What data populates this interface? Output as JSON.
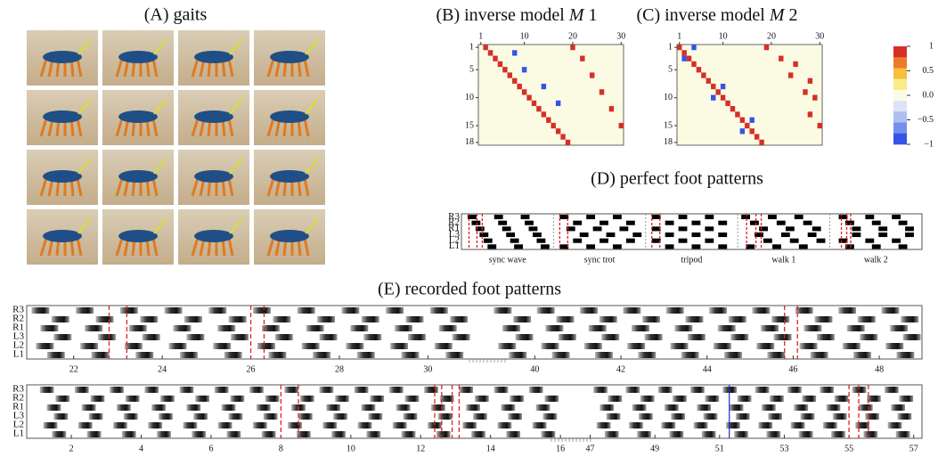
{
  "panel_a": {
    "title": "(A) gaits"
  },
  "colorbar": {
    "clim": [
      -1,
      1
    ],
    "colors": [
      "#d62f27",
      "#ec7a2c",
      "#f6c03c",
      "#f7ec86",
      "#fbfbe4",
      "#dce3f6",
      "#aebff1",
      "#7290ee",
      "#3454e6"
    ],
    "ticks": [
      1,
      0.5,
      {
        "value": 0,
        "label": "0.0"
      },
      {
        "value": -0.5,
        "label": "−0.5"
      },
      {
        "value": -1,
        "label": "−1"
      }
    ]
  },
  "panel_b": {
    "title": [
      "(B) inverse model ",
      "M",
      " 1"
    ],
    "xlim": [
      0.5,
      30.5
    ],
    "ylim": [
      0.5,
      18.5
    ],
    "xticks": [
      1,
      10,
      20,
      30
    ],
    "yticks": [
      1,
      5,
      10,
      15,
      18
    ],
    "cells": [
      [
        1,
        2,
        1
      ],
      [
        2,
        3,
        1
      ],
      [
        3,
        4,
        1
      ],
      [
        4,
        5,
        1
      ],
      [
        5,
        6,
        1
      ],
      [
        6,
        7,
        1
      ],
      [
        7,
        8,
        1
      ],
      [
        8,
        9,
        1
      ],
      [
        9,
        10,
        1
      ],
      [
        10,
        11,
        1
      ],
      [
        11,
        12,
        1
      ],
      [
        12,
        13,
        1
      ],
      [
        13,
        14,
        1
      ],
      [
        14,
        15,
        1
      ],
      [
        15,
        16,
        1
      ],
      [
        16,
        17,
        1
      ],
      [
        17,
        18,
        1
      ],
      [
        18,
        19,
        1
      ],
      [
        2,
        8,
        -1
      ],
      [
        5,
        10,
        -1
      ],
      [
        8,
        14,
        -1
      ],
      [
        11,
        17,
        -1
      ],
      [
        1,
        20,
        1
      ],
      [
        3,
        22,
        1
      ],
      [
        6,
        24,
        1
      ],
      [
        9,
        26,
        1
      ],
      [
        12,
        28,
        1
      ],
      [
        15,
        30,
        1
      ]
    ]
  },
  "panel_c": {
    "title": [
      "(C) inverse model ",
      "M",
      " 2"
    ],
    "xlim": [
      0.5,
      30.5
    ],
    "ylim": [
      0.5,
      18.5
    ],
    "xticks": [
      1,
      10,
      20,
      30
    ],
    "yticks": [
      1,
      5,
      10,
      15,
      18
    ],
    "cells": [
      [
        1,
        1,
        1
      ],
      [
        2,
        2,
        1
      ],
      [
        3,
        3,
        1
      ],
      [
        4,
        4,
        1
      ],
      [
        5,
        5,
        1
      ],
      [
        6,
        6,
        1
      ],
      [
        7,
        7,
        1
      ],
      [
        8,
        8,
        1
      ],
      [
        9,
        9,
        1
      ],
      [
        10,
        10,
        1
      ],
      [
        11,
        11,
        1
      ],
      [
        12,
        12,
        1
      ],
      [
        13,
        13,
        1
      ],
      [
        14,
        14,
        1
      ],
      [
        15,
        15,
        1
      ],
      [
        16,
        16,
        1
      ],
      [
        17,
        17,
        1
      ],
      [
        18,
        18,
        1
      ],
      [
        1,
        4,
        -1
      ],
      [
        3,
        2,
        -1
      ],
      [
        8,
        10,
        -1
      ],
      [
        10,
        8,
        -1
      ],
      [
        14,
        16,
        -1
      ],
      [
        16,
        14,
        -1
      ],
      [
        1,
        19,
        1
      ],
      [
        3,
        22,
        1
      ],
      [
        4,
        25,
        1
      ],
      [
        6,
        24,
        1
      ],
      [
        7,
        28,
        1
      ],
      [
        9,
        27,
        1
      ],
      [
        10,
        29,
        1
      ],
      [
        13,
        28,
        1
      ],
      [
        15,
        30,
        1
      ]
    ]
  },
  "panel_d": {
    "title": "(D) perfect foot patterns",
    "legs": [
      "R3",
      "R2",
      "R1",
      "L3",
      "L2",
      "L1"
    ],
    "xlim": [
      0,
      3.2
    ],
    "gaits": [
      {
        "name": "sync wave",
        "markers": [
          0.15,
          0.45,
          0.65
        ],
        "onsets": [
          [
            0.1,
            1.1,
            2.1
          ],
          [
            0.25,
            1.25,
            2.25
          ],
          [
            0.4,
            1.4,
            2.4
          ],
          [
            0.55,
            1.55,
            2.55
          ],
          [
            0.7,
            1.7,
            2.7
          ],
          [
            0.85,
            1.85,
            2.85
          ]
        ]
      },
      {
        "name": "sync trot",
        "markers": [
          0.1,
          0.4
        ],
        "onsets": [
          [
            0.1,
            1.1,
            2.1
          ],
          [
            0.6,
            1.6,
            2.6
          ],
          [
            0.35,
            1.35,
            2.35
          ],
          [
            0.85,
            1.85,
            2.85
          ],
          [
            0.6,
            1.6,
            2.6
          ],
          [
            0.1,
            1.1,
            2.1
          ]
        ]
      },
      {
        "name": "tripod",
        "markers": [
          0.1,
          0.4
        ],
        "onsets": [
          [
            0.1,
            1.1,
            2.1
          ],
          [
            0.6,
            1.6,
            2.6
          ],
          [
            0.1,
            1.1,
            2.1
          ],
          [
            0.6,
            1.6,
            2.6
          ],
          [
            0.1,
            1.1,
            2.1
          ],
          [
            0.6,
            1.6,
            2.6
          ]
        ]
      },
      {
        "name": "walk 1",
        "markers": [
          0.2,
          0.55,
          0.75
        ],
        "onsets": [
          [
            0,
            1,
            2
          ],
          [
            0.33,
            1.33,
            2.33
          ],
          [
            0.67,
            1.67,
            2.67
          ],
          [
            0.5,
            1.5,
            2.5
          ],
          [
            0.83,
            1.83,
            2.83
          ],
          [
            0.17,
            1.17,
            2.17
          ]
        ]
      },
      {
        "name": "walk 2",
        "markers": [
          0.3,
          0.5,
          0.65
        ],
        "onsets": [
          [
            0.2,
            1.2,
            2.2
          ],
          [
            0.45,
            1.45,
            2.45
          ],
          [
            0.7,
            1.7,
            2.7
          ],
          [
            0.7,
            1.7,
            2.7
          ],
          [
            0.2,
            1.2,
            2.2
          ],
          [
            0.45,
            1.45,
            2.45
          ]
        ]
      }
    ]
  },
  "recorded": {
    "title": "(E) recorded foot patterns",
    "legs": [
      "R3",
      "R2",
      "R1",
      "L3",
      "L2",
      "L1"
    ],
    "strips": [
      {
        "segments": [
          {
            "xlim": [
              21,
              31.3
            ],
            "xticks": [
              22,
              24,
              26,
              28,
              30
            ]
          },
          {
            "xlim": [
              39,
              48.95
            ],
            "xticks": [
              40,
              42,
              44,
              46,
              48
            ]
          }
        ],
        "markers": [
          22.8,
          23.2,
          26.0,
          26.3,
          45.8,
          46.1
        ],
        "onsets": [
          [
            21.05,
            22.05,
            23.05,
            24.05,
            25.05,
            26.05,
            27.05,
            28.05,
            29.05,
            30.05,
            39.05,
            40.05,
            41.05,
            42.05,
            43.05,
            44.05,
            45.05,
            46.05,
            47.05,
            48.05
          ],
          [
            21.5,
            22.5,
            23.5,
            24.5,
            25.5,
            26.5,
            27.5,
            28.5,
            29.5,
            30.5,
            39.5,
            40.5,
            41.5,
            42.5,
            43.5,
            44.5,
            45.5,
            46.5,
            47.5,
            48.5
          ],
          [
            21.25,
            22.25,
            23.25,
            24.25,
            25.25,
            26.25,
            27.25,
            28.25,
            29.25,
            30.25,
            39.25,
            40.25,
            41.25,
            42.25,
            43.25,
            44.25,
            45.25,
            46.25,
            47.25,
            48.25
          ],
          [
            21.55,
            22.55,
            23.55,
            24.55,
            25.55,
            26.55,
            27.55,
            28.55,
            29.55,
            30.55,
            39.55,
            40.55,
            41.55,
            42.55,
            43.55,
            44.55,
            45.55,
            46.55,
            47.55,
            48.55
          ],
          [
            21.15,
            22.15,
            23.15,
            24.15,
            25.15,
            26.15,
            27.15,
            28.15,
            29.15,
            30.15,
            39.15,
            40.15,
            41.15,
            42.15,
            43.15,
            44.15,
            45.15,
            46.15,
            47.15,
            48.15
          ],
          [
            21.4,
            22.4,
            23.4,
            24.4,
            25.4,
            26.4,
            27.4,
            28.4,
            29.4,
            30.4,
            39.4,
            40.4,
            41.4,
            42.4,
            43.4,
            44.4,
            45.4,
            46.4,
            47.4,
            48.4
          ]
        ]
      },
      {
        "segments": [
          {
            "xlim": [
              0.8,
              16.2
            ],
            "xticks": [
              2,
              4,
              6,
              8,
              10,
              12,
              14,
              16
            ]
          },
          {
            "xlim": [
              46.6,
              57.2
            ],
            "xticks": [
              47,
              49,
              51,
              53,
              55,
              57
            ]
          }
        ],
        "markers": [
          8.0,
          8.5,
          12.4,
          12.6,
          12.9,
          13.1,
          55.0,
          55.3,
          55.6
        ],
        "cursor": 51.3,
        "onsets": [
          [
            1.1,
            2.1,
            3.1,
            4.1,
            5.1,
            6.1,
            7.1,
            8.1,
            9.1,
            10.1,
            11.1,
            12.1,
            13.1,
            14.1,
            15.1,
            47.1,
            48.1,
            49.1,
            50.1,
            51.1,
            52.1,
            53.1,
            54.1,
            55.1,
            56.1
          ],
          [
            1.55,
            2.55,
            3.55,
            4.55,
            5.55,
            6.55,
            7.55,
            8.55,
            9.55,
            10.55,
            11.55,
            12.55,
            13.55,
            14.55,
            15.55,
            47.55,
            48.55,
            49.55,
            50.55,
            51.55,
            52.55,
            53.55,
            54.55,
            55.55,
            56.55
          ],
          [
            1.3,
            2.3,
            3.3,
            4.3,
            5.3,
            6.3,
            7.3,
            8.3,
            9.3,
            10.3,
            11.3,
            12.3,
            13.3,
            14.3,
            15.3,
            47.3,
            48.3,
            49.3,
            50.3,
            51.3,
            52.3,
            53.3,
            54.3,
            55.3,
            56.3
          ],
          [
            1.5,
            2.5,
            3.5,
            4.5,
            5.5,
            6.5,
            7.5,
            8.5,
            9.5,
            10.5,
            11.5,
            12.5,
            13.5,
            14.5,
            15.5,
            47.5,
            48.5,
            49.5,
            50.5,
            51.5,
            52.5,
            53.5,
            54.5,
            55.5,
            56.5
          ],
          [
            1.2,
            2.2,
            3.2,
            4.2,
            5.2,
            6.2,
            7.2,
            8.2,
            9.2,
            10.2,
            11.2,
            12.2,
            13.2,
            14.2,
            15.2,
            47.2,
            48.2,
            49.2,
            50.2,
            51.2,
            52.2,
            53.2,
            54.2,
            55.2,
            56.2
          ],
          [
            1.45,
            2.45,
            3.45,
            4.45,
            5.45,
            6.45,
            7.45,
            8.45,
            9.45,
            10.45,
            11.45,
            12.45,
            13.45,
            14.45,
            15.45,
            47.45,
            48.45,
            49.45,
            50.45,
            51.45,
            52.45,
            53.45,
            54.45,
            55.45,
            56.45
          ]
        ]
      }
    ]
  }
}
